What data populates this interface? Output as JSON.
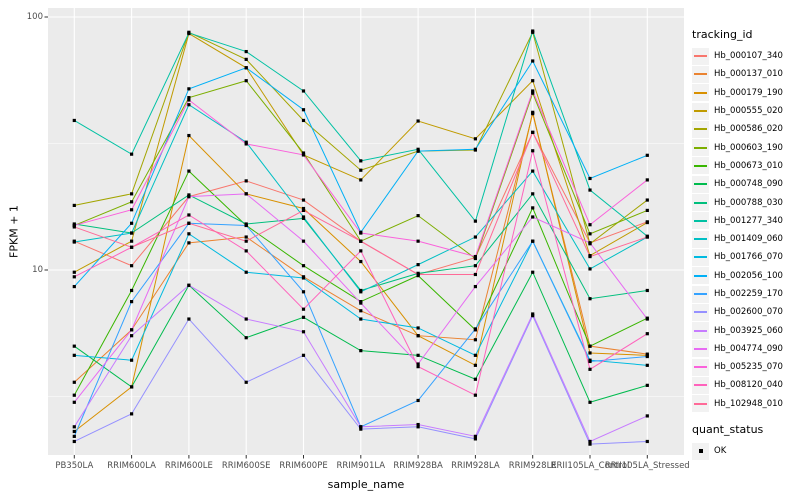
{
  "chart_data": {
    "type": "line",
    "title": "",
    "xlabel": "sample_name",
    "ylabel": "FPKM + 1",
    "y_scale": "log10",
    "ylim": [
      1.85,
      110
    ],
    "y_ticks": [
      "100",
      "10"
    ],
    "grid": "white major/minor gridlines on gray panel (ggplot theme)",
    "panel_bg": "#EBEBEB",
    "point_marker": "black-square",
    "categories": [
      "PB350LA",
      "RRIM600LA",
      "RRIM600LE",
      "RRIM600SE",
      "RRIM600PE",
      "RRIM901LA",
      "RRIM928BA",
      "RRIM928LA",
      "RRIM928LE",
      "RRII105LA_Control",
      "RRII105LA_Stressed"
    ],
    "legend": {
      "title": "tracking_id",
      "position": "right"
    },
    "legend2": {
      "title": "quant_status",
      "items": [
        {
          "label": "OK",
          "marker": "black-square"
        }
      ]
    },
    "series": [
      {
        "name": "Hb_000107_340",
        "color": "#F8766D",
        "values": [
          13,
          10.4,
          19.5,
          22.5,
          18.9,
          13,
          9.6,
          11.2,
          35,
          12.8,
          15.5
        ]
      },
      {
        "name": "Hb_000137_010",
        "color": "#EA8331",
        "values": [
          3.6,
          5.8,
          12.8,
          13.5,
          9.4,
          6.9,
          5.5,
          5.3,
          41.5,
          5.0,
          4.65
        ]
      },
      {
        "name": "Hb_000179_190",
        "color": "#D89000",
        "values": [
          2.3,
          3.45,
          34,
          20,
          17.5,
          10.8,
          5.5,
          4.2,
          42,
          4.7,
          4.6
        ]
      },
      {
        "name": "Hb_000555_020",
        "color": "#C09B00",
        "values": [
          9.8,
          13,
          86,
          63,
          28.5,
          22.7,
          38.8,
          33,
          56,
          11.4,
          15.4
        ]
      },
      {
        "name": "Hb_000586_020",
        "color": "#A3A500",
        "values": [
          18,
          20,
          87,
          68,
          39,
          24.8,
          29.5,
          29.8,
          87,
          12.7,
          18.9
        ]
      },
      {
        "name": "Hb_000603_190",
        "color": "#7CAE00",
        "values": [
          15,
          18.6,
          48,
          56,
          29,
          13,
          16.4,
          11.1,
          50,
          13.9,
          17.2
        ]
      },
      {
        "name": "Hb_000673_010",
        "color": "#39B600",
        "values": [
          3.2,
          8.3,
          24.6,
          15,
          10.4,
          7.5,
          9.5,
          5.8,
          17.6,
          5.0,
          6.45
        ]
      },
      {
        "name": "Hb_000748_090",
        "color": "#00BB4E",
        "values": [
          5.0,
          3.45,
          8.7,
          5.4,
          6.5,
          4.8,
          4.6,
          3.7,
          9.8,
          3.0,
          3.5
        ]
      },
      {
        "name": "Hb_000788_030",
        "color": "#00BF7D",
        "values": [
          15.2,
          14,
          19.8,
          15.2,
          16,
          8.3,
          9.7,
          10.4,
          20,
          7.7,
          8.3
        ]
      },
      {
        "name": "Hb_001277_340",
        "color": "#00C1A3",
        "values": [
          39,
          28.7,
          86.5,
          73,
          51,
          27,
          30,
          15.6,
          88,
          20.7,
          13.6
        ]
      },
      {
        "name": "Hb_001409_060",
        "color": "#00BFC4",
        "values": [
          12.9,
          14,
          45,
          32,
          16.2,
          8.2,
          10.5,
          13.5,
          24.6,
          10.1,
          13.5
        ]
      },
      {
        "name": "Hb_001766_070",
        "color": "#00BAE0",
        "values": [
          4.6,
          4.4,
          13.9,
          9.8,
          9.3,
          6.4,
          5.9,
          4.6,
          13,
          4.4,
          4.2
        ]
      },
      {
        "name": "Hb_002056_100",
        "color": "#00B0F6",
        "values": [
          8.6,
          15.3,
          52,
          63,
          43,
          14.1,
          29.5,
          30,
          67,
          23,
          28.4
        ]
      },
      {
        "name": "Hb_002259_170",
        "color": "#35A2FF",
        "values": [
          2.2,
          7.5,
          15.3,
          15,
          8.2,
          2.4,
          3.05,
          5.85,
          13,
          4.35,
          4.55
        ]
      },
      {
        "name": "Hb_002600_070",
        "color": "#9590FF",
        "values": [
          2.1,
          2.7,
          6.4,
          3.6,
          4.6,
          2.35,
          2.4,
          2.15,
          6.6,
          2.05,
          2.1
        ]
      },
      {
        "name": "Hb_003925_060",
        "color": "#C77CFF",
        "values": [
          2.4,
          5.5,
          8.7,
          6.4,
          5.7,
          2.4,
          2.45,
          2.2,
          6.7,
          2.1,
          2.65
        ]
      },
      {
        "name": "Hb_004774_090",
        "color": "#E76BF3",
        "values": [
          3.0,
          5.8,
          19.5,
          20,
          13,
          7.4,
          4.25,
          8.6,
          16.2,
          12.8,
          6.4
        ]
      },
      {
        "name": "Hb_005235_070",
        "color": "#FA62DB",
        "values": [
          15,
          17.3,
          47,
          31.5,
          28.5,
          14,
          13,
          11.3,
          51,
          15.1,
          22.7
        ]
      },
      {
        "name": "Hb_008120_040",
        "color": "#FF62BC",
        "values": [
          9.4,
          12.3,
          16.5,
          11.9,
          7.0,
          11.9,
          4.15,
          3.2,
          29.6,
          4.05,
          5.6
        ]
      },
      {
        "name": "Hb_102948_010",
        "color": "#FF6A98",
        "values": [
          14.8,
          12.3,
          15.3,
          13,
          17.2,
          13,
          9.6,
          9.6,
          35,
          11.3,
          13.5
        ]
      }
    ]
  }
}
